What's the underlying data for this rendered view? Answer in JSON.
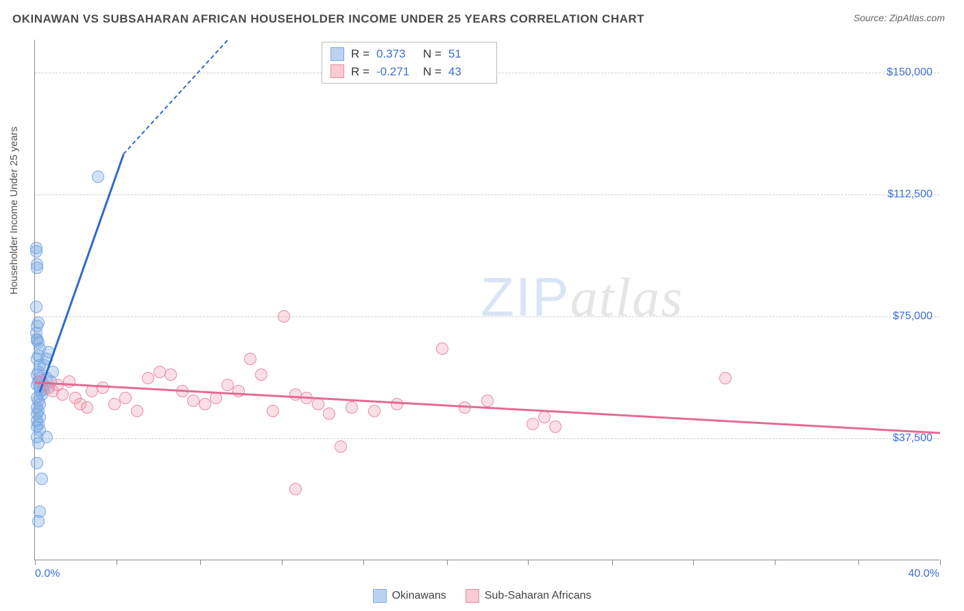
{
  "header": {
    "title": "OKINAWAN VS SUBSAHARAN AFRICAN HOUSEHOLDER INCOME UNDER 25 YEARS CORRELATION CHART",
    "source": "Source: ZipAtlas.com"
  },
  "chart": {
    "type": "scatter",
    "ylabel": "Householder Income Under 25 years",
    "xlim": [
      0,
      40
    ],
    "ylim": [
      0,
      160000
    ],
    "x_start_label": "0.0%",
    "x_end_label": "40.0%",
    "ytick_values": [
      37500,
      75000,
      112500,
      150000
    ],
    "ytick_labels": [
      "$37,500",
      "$75,000",
      "$112,500",
      "$150,000"
    ],
    "xtick_values": [
      0,
      3.6,
      7.3,
      10.9,
      14.5,
      18.2,
      21.8,
      25.5,
      29.1,
      32.7,
      36.4,
      40
    ],
    "grid_color": "#cccccc",
    "background_color": "#ffffff",
    "marker_radius": 9,
    "marker_stroke_width": 1.5,
    "series": [
      {
        "name": "Okinawans",
        "fill_color": "rgba(122,168,226,0.35)",
        "stroke_color": "#7aa8e2",
        "line_color": "#2f68c9",
        "r_value": "0.373",
        "n_value": "51",
        "trend": {
          "x1": 0.2,
          "y1": 52000,
          "x2": 3.9,
          "y2": 125000,
          "dashed_ext_x2": 8.5,
          "dashed_ext_y2": 215000
        },
        "points": [
          [
            0.05,
            96000
          ],
          [
            0.05,
            95000
          ],
          [
            0.1,
            91000
          ],
          [
            0.1,
            90000
          ],
          [
            0.05,
            78000
          ],
          [
            0.15,
            73000
          ],
          [
            0.1,
            72000
          ],
          [
            0.05,
            70000
          ],
          [
            0.1,
            68000
          ],
          [
            0.15,
            67000
          ],
          [
            0.1,
            67500
          ],
          [
            0.2,
            65000
          ],
          [
            0.15,
            63000
          ],
          [
            0.1,
            62000
          ],
          [
            0.2,
            60000
          ],
          [
            0.15,
            58000
          ],
          [
            0.1,
            57000
          ],
          [
            0.2,
            56000
          ],
          [
            0.15,
            55000
          ],
          [
            0.1,
            54000
          ],
          [
            0.2,
            53000
          ],
          [
            0.25,
            52000
          ],
          [
            0.3,
            51000
          ],
          [
            0.35,
            52500
          ],
          [
            0.4,
            54000
          ],
          [
            0.5,
            56000
          ],
          [
            0.6,
            53000
          ],
          [
            0.7,
            55000
          ],
          [
            0.8,
            58000
          ],
          [
            0.1,
            50000
          ],
          [
            0.15,
            49000
          ],
          [
            0.2,
            48000
          ],
          [
            0.1,
            47000
          ],
          [
            0.15,
            46000
          ],
          [
            0.1,
            45000
          ],
          [
            0.2,
            44000
          ],
          [
            0.1,
            43000
          ],
          [
            0.15,
            42000
          ],
          [
            0.1,
            41000
          ],
          [
            0.2,
            40000
          ],
          [
            0.1,
            38000
          ],
          [
            0.15,
            36000
          ],
          [
            0.5,
            38000
          ],
          [
            0.1,
            30000
          ],
          [
            0.3,
            25000
          ],
          [
            0.2,
            15000
          ],
          [
            0.15,
            12000
          ],
          [
            2.8,
            118000
          ],
          [
            0.4,
            60000
          ],
          [
            0.5,
            62000
          ],
          [
            0.6,
            64000
          ]
        ]
      },
      {
        "name": "Sub-Saharan Africans",
        "fill_color": "rgba(240,150,170,0.30)",
        "stroke_color": "#e88aa3",
        "line_color": "#e56a8f",
        "r_value": "-0.271",
        "n_value": "43",
        "trend": {
          "x1": 0,
          "y1": 55000,
          "x2": 40,
          "y2": 39500
        },
        "points": [
          [
            0.3,
            55000
          ],
          [
            0.6,
            53000
          ],
          [
            0.8,
            52000
          ],
          [
            1.0,
            54000
          ],
          [
            1.2,
            51000
          ],
          [
            1.5,
            55000
          ],
          [
            1.8,
            50000
          ],
          [
            2.0,
            48000
          ],
          [
            2.3,
            47000
          ],
          [
            2.5,
            52000
          ],
          [
            3.0,
            53000
          ],
          [
            3.5,
            48000
          ],
          [
            4.0,
            50000
          ],
          [
            4.5,
            46000
          ],
          [
            5.0,
            56000
          ],
          [
            5.5,
            58000
          ],
          [
            6.0,
            57000
          ],
          [
            6.5,
            52000
          ],
          [
            7.0,
            49000
          ],
          [
            7.5,
            48000
          ],
          [
            8.0,
            50000
          ],
          [
            8.5,
            54000
          ],
          [
            9.0,
            52000
          ],
          [
            9.5,
            62000
          ],
          [
            10.0,
            57000
          ],
          [
            10.5,
            46000
          ],
          [
            11.0,
            75000
          ],
          [
            11.5,
            51000
          ],
          [
            12.0,
            50000
          ],
          [
            12.5,
            48000
          ],
          [
            13.0,
            45000
          ],
          [
            14.0,
            47000
          ],
          [
            15.0,
            46000
          ],
          [
            16.0,
            48000
          ],
          [
            18.0,
            65000
          ],
          [
            19.0,
            47000
          ],
          [
            20.0,
            49000
          ],
          [
            22.0,
            42000
          ],
          [
            22.5,
            44000
          ],
          [
            23.0,
            41000
          ],
          [
            11.5,
            22000
          ],
          [
            13.5,
            35000
          ],
          [
            30.5,
            56000
          ]
        ]
      }
    ]
  },
  "stats_box": {
    "rows": [
      {
        "swatch_fill": "rgba(122,168,226,0.5)",
        "swatch_border": "#7aa8e2",
        "r_label": "R =",
        "r": "0.373",
        "n_label": "N =",
        "n": "51"
      },
      {
        "swatch_fill": "rgba(240,150,170,0.5)",
        "swatch_border": "#e88aa3",
        "r_label": "R =",
        "r": "-0.271",
        "n_label": "N =",
        "n": "43"
      }
    ]
  },
  "legend": {
    "items": [
      {
        "label": "Okinawans",
        "fill": "rgba(122,168,226,0.5)",
        "border": "#7aa8e2"
      },
      {
        "label": "Sub-Saharan Africans",
        "fill": "rgba(240,150,170,0.5)",
        "border": "#e88aa3"
      }
    ]
  },
  "watermark": {
    "part1": "ZIP",
    "part2": "atlas"
  }
}
